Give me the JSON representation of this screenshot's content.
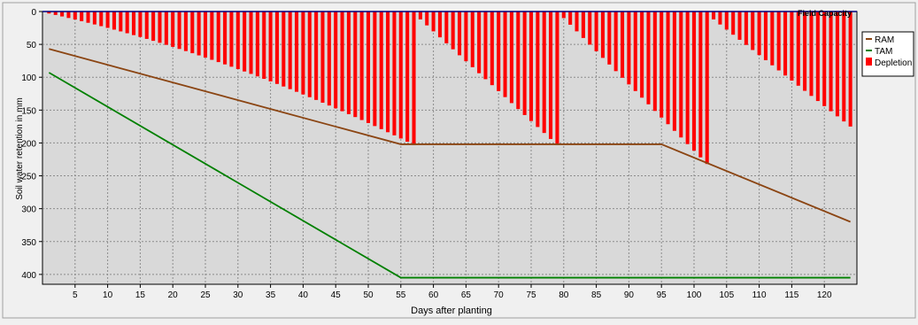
{
  "chart_data": {
    "type": "bar",
    "title": "",
    "xlabel": "Days after planting",
    "ylabel": "Soil water retention in mm",
    "xlim": [
      0,
      125
    ],
    "ylim": [
      0,
      415
    ],
    "y_inverted": true,
    "grid": true,
    "legend_position": "right",
    "x_ticks": [
      5,
      10,
      15,
      20,
      25,
      30,
      35,
      40,
      45,
      50,
      55,
      60,
      65,
      70,
      75,
      80,
      85,
      90,
      95,
      100,
      105,
      110,
      115,
      120
    ],
    "y_ticks": [
      0,
      50,
      100,
      150,
      200,
      250,
      300,
      350,
      400
    ],
    "reference_line": {
      "label": "Field Capacity",
      "value": 0,
      "color": "#00007f"
    },
    "series": [
      {
        "name": "RAM",
        "type": "line",
        "color": "#8b4513",
        "points": [
          [
            1,
            57
          ],
          [
            55,
            202
          ],
          [
            95,
            202
          ],
          [
            124,
            320
          ]
        ]
      },
      {
        "name": "TAM",
        "type": "line",
        "color": "#008000",
        "points": [
          [
            1,
            93
          ],
          [
            55,
            405
          ],
          [
            124,
            405
          ]
        ]
      },
      {
        "name": "Depletion",
        "type": "bar",
        "color": "#ff0000",
        "segments": [
          {
            "start_day": 1,
            "end_day": 57,
            "start_value": 3,
            "end_value": 203,
            "shape": "convex"
          },
          {
            "start_day": 58,
            "end_day": 79,
            "start_value": 12,
            "end_value": 203,
            "shape": "linear"
          },
          {
            "start_day": 80,
            "end_day": 102,
            "start_value": 10,
            "end_value": 232,
            "shape": "linear"
          },
          {
            "start_day": 103,
            "end_day": 124,
            "start_value": 12,
            "end_value": 175,
            "shape": "linear"
          }
        ]
      }
    ]
  }
}
